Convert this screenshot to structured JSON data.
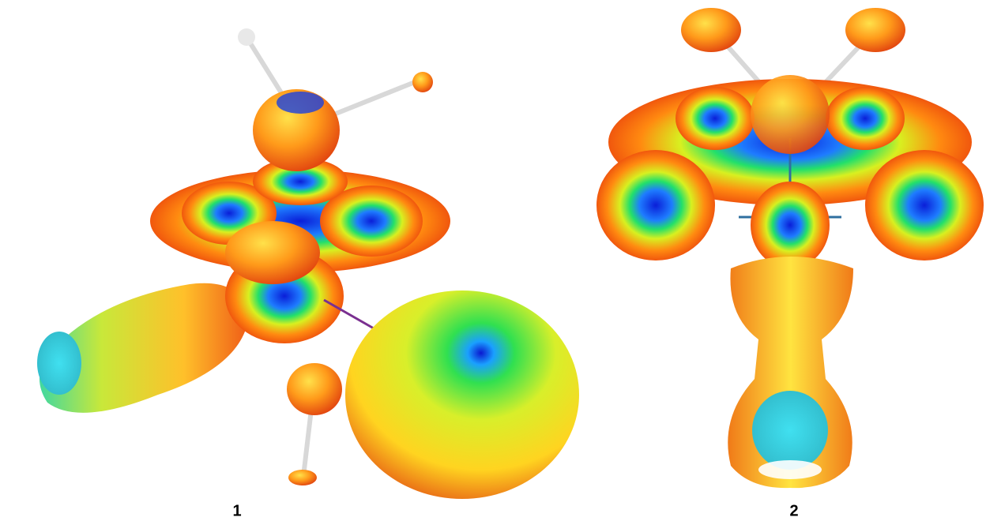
{
  "panels": [
    {
      "label": "1"
    },
    {
      "label": "2"
    }
  ]
}
